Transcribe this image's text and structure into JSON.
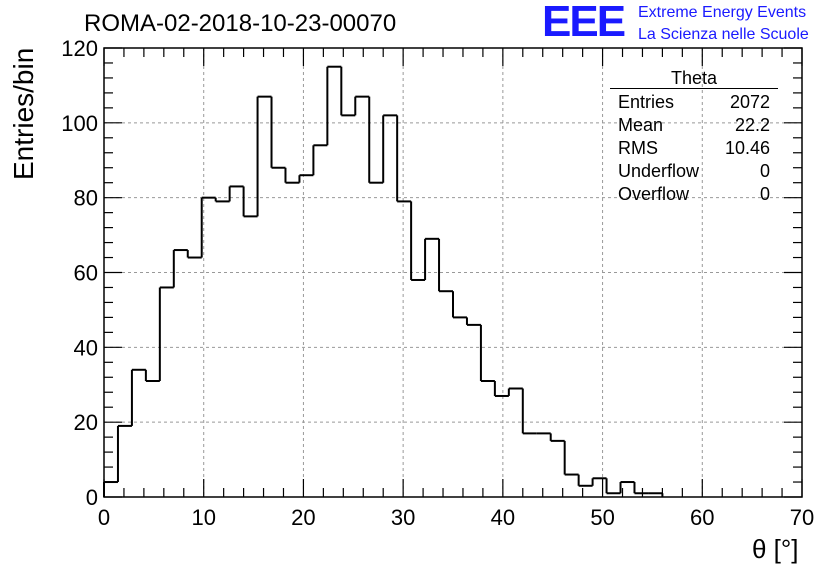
{
  "header": {
    "run_title": "ROMA-02-2018-10-23-00070"
  },
  "logo": {
    "mark": "EEE",
    "line1": "Extreme Energy Events",
    "line2": "La Scienza nelle Scuole"
  },
  "stats_box": {
    "title": "Theta",
    "rows": [
      {
        "label": "Entries",
        "value": "2072"
      },
      {
        "label": "Mean",
        "value": "22.2"
      },
      {
        "label": "RMS",
        "value": "10.46"
      },
      {
        "label": "Underflow",
        "value": "0"
      },
      {
        "label": "Overflow",
        "value": "0"
      }
    ]
  },
  "chart_data": {
    "type": "bar",
    "histogram": true,
    "title": "ROMA-02-2018-10-23-00070",
    "xlabel": "θ [°]",
    "ylabel": "Entries/bin",
    "xlim": [
      0,
      70
    ],
    "ylim": [
      0,
      120
    ],
    "bin_width": 1.4,
    "bin_edges_start": 0,
    "x_ticks": [
      "0",
      "10",
      "20",
      "30",
      "40",
      "50",
      "60",
      "70"
    ],
    "y_ticks": [
      "0",
      "20",
      "40",
      "60",
      "80",
      "100",
      "120"
    ],
    "grid": true,
    "legend": "stats box top-right",
    "values": [
      4,
      19,
      34,
      31,
      56,
      66,
      64,
      80,
      79,
      83,
      75,
      107,
      88,
      84,
      86,
      94,
      115,
      102,
      107,
      84,
      102,
      79,
      58,
      69,
      55,
      48,
      46,
      31,
      27,
      29,
      17,
      17,
      15,
      6,
      3,
      5,
      1,
      4,
      1,
      1,
      0,
      0,
      0,
      0,
      0,
      0,
      0,
      0,
      0,
      0
    ],
    "line_color": "#000000",
    "grid_color": "#999999"
  }
}
